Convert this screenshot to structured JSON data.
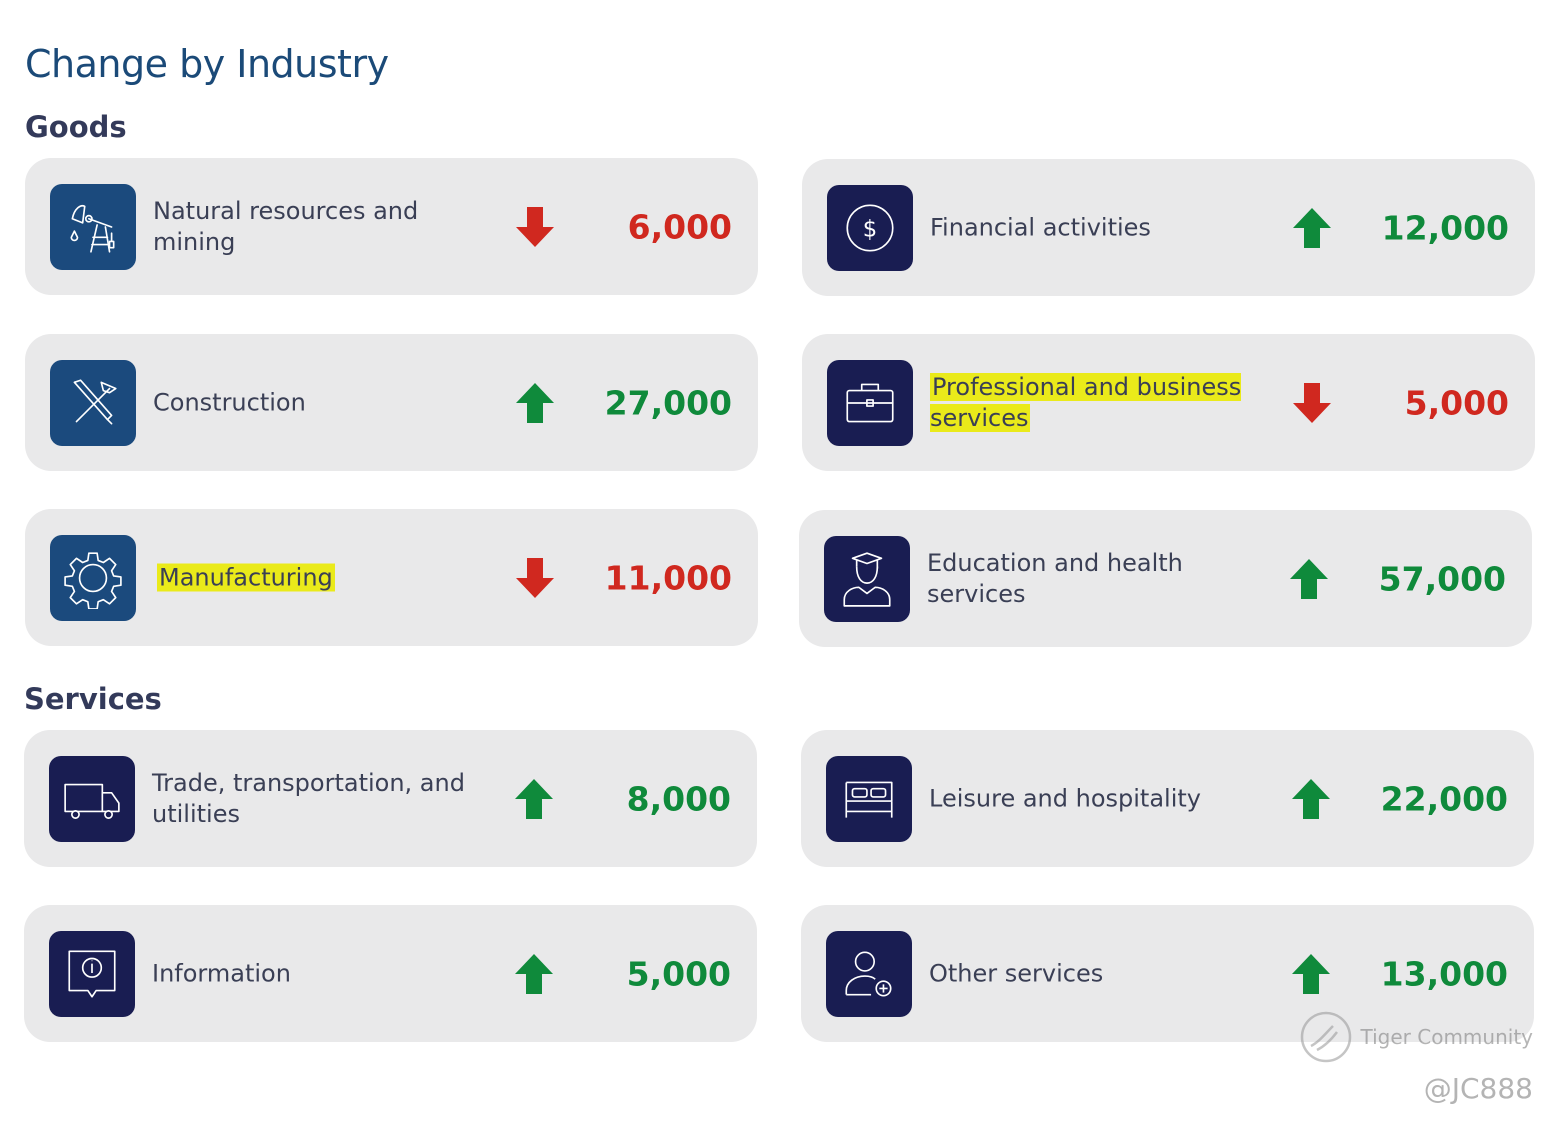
{
  "title": "Change by Industry",
  "sections": {
    "goods": "Goods",
    "services": "Services"
  },
  "colors": {
    "increase": "#0f8a3b",
    "decrease": "#d0281f",
    "blue_icon": "#1b4a7d",
    "navy_icon": "#191d52"
  },
  "cards": {
    "natural_resources": {
      "label": "Natural resources and mining",
      "direction": "down",
      "value": "6,000",
      "icon": "oil-derrick-icon"
    },
    "financial": {
      "label": "Financial activities",
      "direction": "up",
      "value": "12,000",
      "icon": "dollar-coin-icon"
    },
    "construction": {
      "label": "Construction",
      "direction": "up",
      "value": "27,000",
      "icon": "tools-icon"
    },
    "professional": {
      "label": "Professional and business services",
      "direction": "down",
      "value": "5,000",
      "icon": "briefcase-icon",
      "highlighted": true
    },
    "manufacturing": {
      "label": "Manufacturing",
      "direction": "down",
      "value": "11,000",
      "icon": "gear-icon",
      "highlighted": true
    },
    "education_health": {
      "label": "Education and health services",
      "direction": "up",
      "value": "57,000",
      "icon": "graduate-icon"
    },
    "trade": {
      "label": "Trade, transportation, and utilities",
      "direction": "up",
      "value": "8,000",
      "icon": "truck-icon"
    },
    "leisure": {
      "label": "Leisure and hospitality",
      "direction": "up",
      "value": "22,000",
      "icon": "bed-icon"
    },
    "information": {
      "label": "Information",
      "direction": "up",
      "value": "5,000",
      "icon": "info-bubble-icon"
    },
    "other": {
      "label": "Other services",
      "direction": "up",
      "value": "13,000",
      "icon": "user-add-icon"
    }
  },
  "watermark": {
    "text": "Tiger Community",
    "handle": "@JC888"
  }
}
